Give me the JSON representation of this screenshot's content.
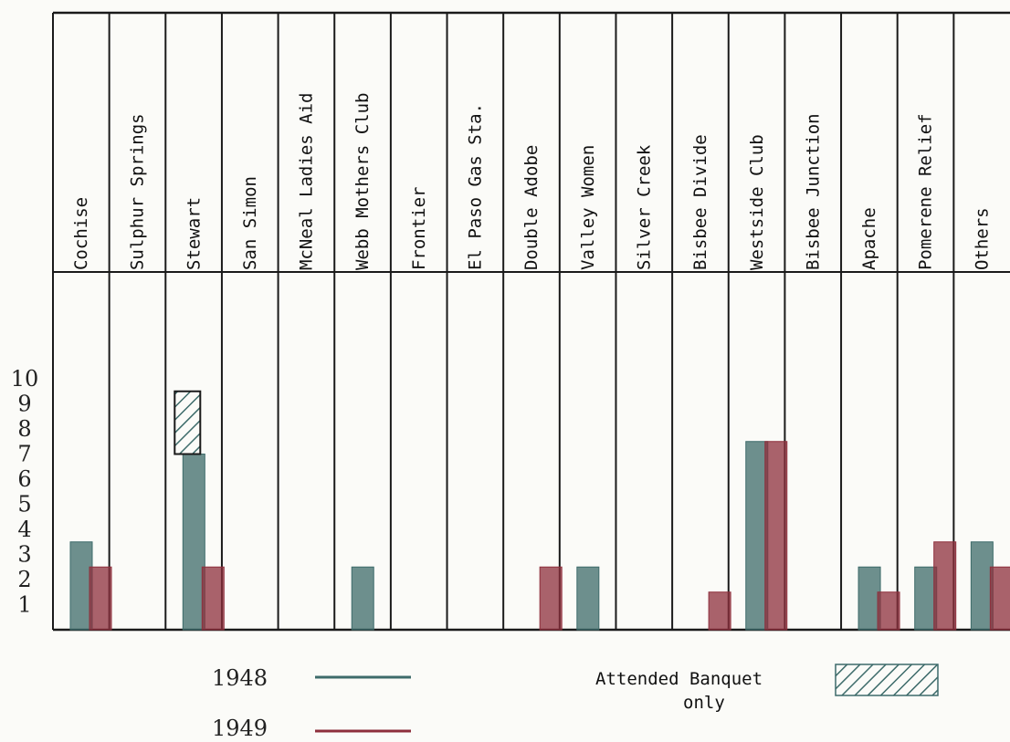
{
  "chart_data": {
    "type": "bar",
    "categories": [
      "Cochise",
      "Sulphur Springs",
      "Stewart",
      "San Simon",
      "McNeal Ladies Aid",
      "Webb Mothers Club",
      "Frontier",
      "El Paso Gas Sta.",
      "Double Adobe",
      "Valley Women",
      "Silver Creek",
      "Bisbee Divide",
      "Westside Club",
      "Bisbee Junction",
      "Apache",
      "Pomerene Relief",
      "Others"
    ],
    "series": [
      {
        "name": "1948",
        "color": "#3d6b6a",
        "values": [
          3.5,
          0,
          7,
          0,
          0,
          2.5,
          0,
          0,
          0,
          2.5,
          0,
          0,
          7.5,
          0,
          2.5,
          2.5,
          3.5
        ]
      },
      {
        "name": "1949",
        "color": "#8e2f3c",
        "values": [
          2.5,
          0,
          2.5,
          0,
          0,
          0,
          0,
          0,
          2.5,
          0,
          0,
          1.5,
          7.5,
          0,
          1.5,
          3.5,
          2.5
        ]
      }
    ],
    "banquet_only": [
      {
        "category": "Stewart",
        "series": "1948",
        "from": 7,
        "to": 9.5
      }
    ],
    "yticks": [
      "1",
      "2",
      "3",
      "4",
      "5",
      "6",
      "7",
      "8",
      "9",
      "10"
    ],
    "ylim": [
      0,
      10.5
    ],
    "grid": false,
    "legend": {
      "placement": "bottom",
      "series_labels": [
        "1948",
        "1949"
      ],
      "hatch_label_line1": "Attended Banquet",
      "hatch_label_line2": "only"
    }
  }
}
